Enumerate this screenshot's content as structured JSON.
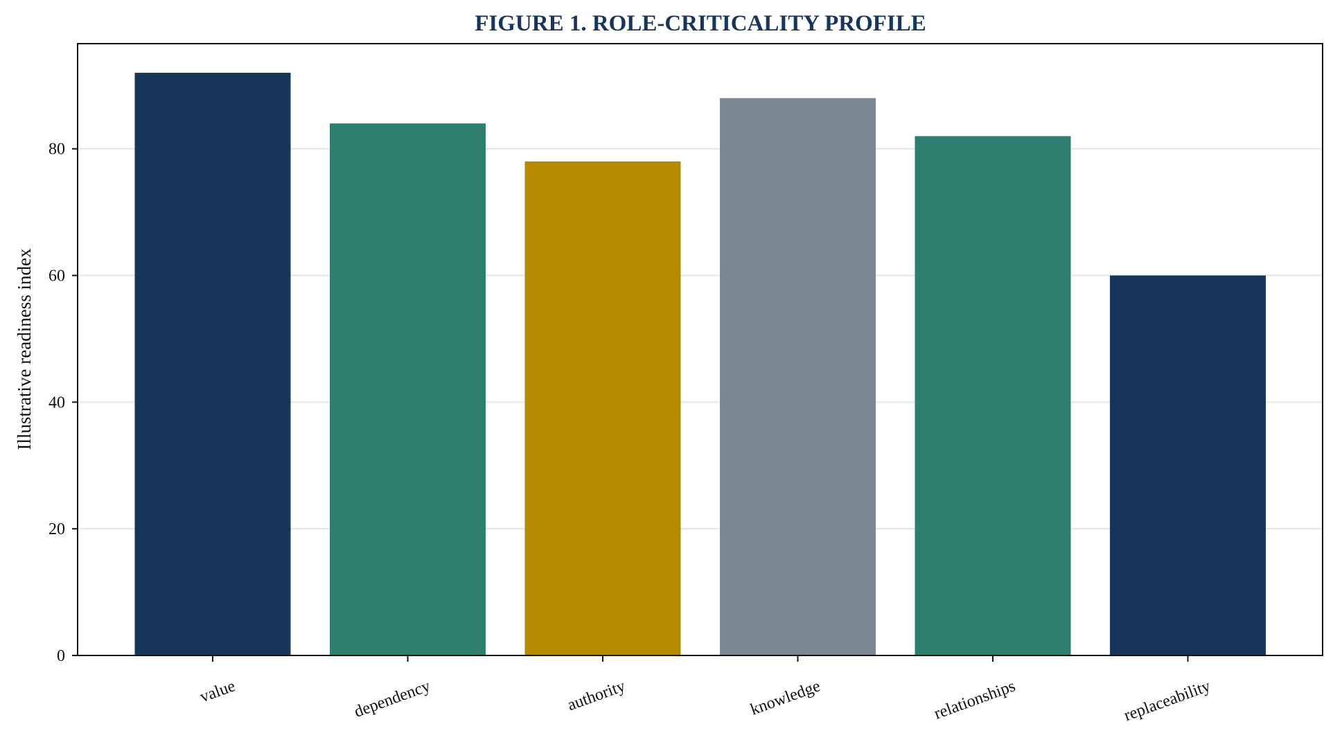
{
  "chart_data": {
    "type": "bar",
    "title": "FIGURE 1. ROLE-CRITICALITY PROFILE",
    "xlabel": "",
    "ylabel": "Illustrative readiness index",
    "categories": [
      "value",
      "dependency",
      "authority",
      "knowledge",
      "relationships",
      "replaceability"
    ],
    "values": [
      92,
      84,
      78,
      88,
      82,
      60
    ],
    "bar_colors": [
      "#18365c",
      "#2e7f6f",
      "#b38a00",
      "#7a8795",
      "#2e7f6f",
      "#18365c"
    ],
    "ylim": [
      0,
      96.6
    ],
    "yticks": [
      0,
      20,
      40,
      60,
      80
    ],
    "grid": true,
    "legend": "none",
    "title_color": "#18365c"
  }
}
